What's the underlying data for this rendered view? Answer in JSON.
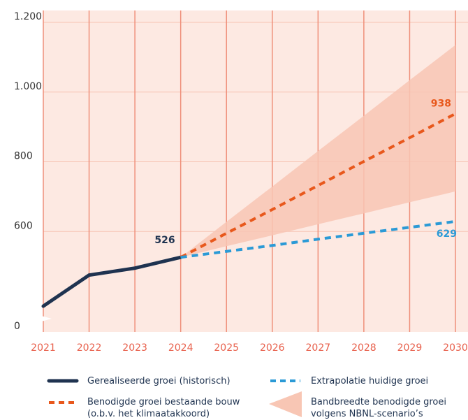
{
  "chart_data": {
    "type": "line",
    "x": [
      2021,
      2022,
      2023,
      2024,
      2025,
      2026,
      2027,
      2028,
      2029,
      2030
    ],
    "xlim": [
      2021,
      2030
    ],
    "ylim": [
      0,
      1200
    ],
    "ybreak": 350,
    "yticks": [
      0,
      600,
      800,
      {
        "value": 1000,
        "label": "1.000"
      },
      {
        "value": 1200,
        "label": "1.200"
      }
    ],
    "grid": true,
    "background": "#fde9e2",
    "series": [
      {
        "name": "Gerealiseerde groei (historisch)",
        "color": "#1f3350",
        "style": "solid",
        "values": [
          386,
          475,
          495,
          526,
          null,
          null,
          null,
          null,
          null,
          null
        ]
      },
      {
        "name": "Benodigde groei bestaande bouw\n(o.b.v. het klimaatakkoord)",
        "color": "#e8581c",
        "style": "dashed",
        "values": [
          null,
          null,
          null,
          526,
          595,
          663,
          732,
          801,
          869,
          938
        ]
      },
      {
        "name": "Extrapolatie huidige groei",
        "color": "#2b9ad6",
        "style": "dashed",
        "values": [
          null,
          null,
          null,
          526,
          543,
          560,
          578,
          595,
          612,
          629
        ]
      },
      {
        "name": "Bandbreedte benodigde groei\nvolgens NBNL-scenario’s",
        "color": "#f8c6b4",
        "style": "band",
        "values": [
          null,
          null,
          null,
          526,
          628,
          729,
          831,
          932,
          1034,
          1135
        ],
        "lower": [
          null,
          null,
          null,
          526,
          558,
          589,
          621,
          652,
          684,
          715
        ]
      }
    ]
  }
}
